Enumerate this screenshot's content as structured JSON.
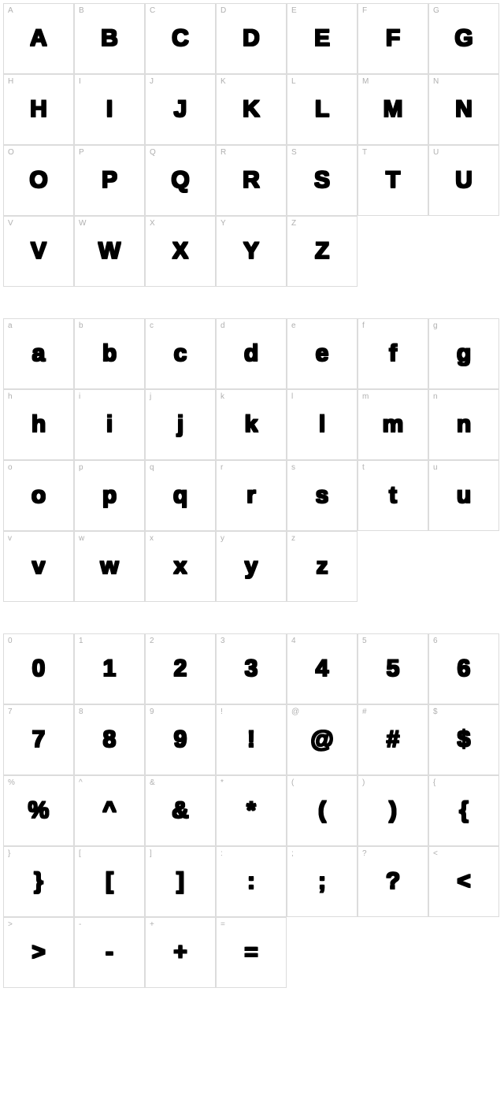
{
  "style": {
    "background_color": "#ffffff",
    "border_color": "#dcdcdc",
    "label_color": "#b0b0b0",
    "glyph_color": "#000000",
    "label_fontsize": 10,
    "glyph_fontsize": 30,
    "cell_size": 90,
    "columns": 7,
    "section_gap": 40
  },
  "sections": [
    {
      "name": "uppercase",
      "cells": [
        {
          "label": "A",
          "glyph": "A"
        },
        {
          "label": "B",
          "glyph": "B"
        },
        {
          "label": "C",
          "glyph": "C"
        },
        {
          "label": "D",
          "glyph": "D"
        },
        {
          "label": "E",
          "glyph": "E"
        },
        {
          "label": "F",
          "glyph": "F"
        },
        {
          "label": "G",
          "glyph": "G"
        },
        {
          "label": "H",
          "glyph": "H"
        },
        {
          "label": "I",
          "glyph": "I"
        },
        {
          "label": "J",
          "glyph": "J"
        },
        {
          "label": "K",
          "glyph": "K"
        },
        {
          "label": "L",
          "glyph": "L"
        },
        {
          "label": "M",
          "glyph": "M"
        },
        {
          "label": "N",
          "glyph": "N"
        },
        {
          "label": "O",
          "glyph": "O"
        },
        {
          "label": "P",
          "glyph": "P"
        },
        {
          "label": "Q",
          "glyph": "Q"
        },
        {
          "label": "R",
          "glyph": "R"
        },
        {
          "label": "S",
          "glyph": "S"
        },
        {
          "label": "T",
          "glyph": "T"
        },
        {
          "label": "U",
          "glyph": "U"
        },
        {
          "label": "V",
          "glyph": "V"
        },
        {
          "label": "W",
          "glyph": "W"
        },
        {
          "label": "X",
          "glyph": "X"
        },
        {
          "label": "Y",
          "glyph": "Y"
        },
        {
          "label": "Z",
          "glyph": "Z"
        }
      ]
    },
    {
      "name": "lowercase",
      "cells": [
        {
          "label": "a",
          "glyph": "a"
        },
        {
          "label": "b",
          "glyph": "b"
        },
        {
          "label": "c",
          "glyph": "c"
        },
        {
          "label": "d",
          "glyph": "d"
        },
        {
          "label": "e",
          "glyph": "e"
        },
        {
          "label": "f",
          "glyph": "f"
        },
        {
          "label": "g",
          "glyph": "g"
        },
        {
          "label": "h",
          "glyph": "h"
        },
        {
          "label": "i",
          "glyph": "i"
        },
        {
          "label": "j",
          "glyph": "j"
        },
        {
          "label": "k",
          "glyph": "k"
        },
        {
          "label": "l",
          "glyph": "l"
        },
        {
          "label": "m",
          "glyph": "m"
        },
        {
          "label": "n",
          "glyph": "n"
        },
        {
          "label": "o",
          "glyph": "o"
        },
        {
          "label": "p",
          "glyph": "p"
        },
        {
          "label": "q",
          "glyph": "q"
        },
        {
          "label": "r",
          "glyph": "r"
        },
        {
          "label": "s",
          "glyph": "s"
        },
        {
          "label": "t",
          "glyph": "t"
        },
        {
          "label": "u",
          "glyph": "u"
        },
        {
          "label": "v",
          "glyph": "v"
        },
        {
          "label": "w",
          "glyph": "w"
        },
        {
          "label": "x",
          "glyph": "x"
        },
        {
          "label": "y",
          "glyph": "y"
        },
        {
          "label": "z",
          "glyph": "z"
        }
      ]
    },
    {
      "name": "symbols",
      "cells": [
        {
          "label": "0",
          "glyph": "0"
        },
        {
          "label": "1",
          "glyph": "1"
        },
        {
          "label": "2",
          "glyph": "2"
        },
        {
          "label": "3",
          "glyph": "3"
        },
        {
          "label": "4",
          "glyph": "4"
        },
        {
          "label": "5",
          "glyph": "5"
        },
        {
          "label": "6",
          "glyph": "6"
        },
        {
          "label": "7",
          "glyph": "7"
        },
        {
          "label": "8",
          "glyph": "8"
        },
        {
          "label": "9",
          "glyph": "9"
        },
        {
          "label": "!",
          "glyph": "!"
        },
        {
          "label": "@",
          "glyph": "@"
        },
        {
          "label": "#",
          "glyph": "#"
        },
        {
          "label": "$",
          "glyph": "$"
        },
        {
          "label": "%",
          "glyph": "%"
        },
        {
          "label": "^",
          "glyph": "^"
        },
        {
          "label": "&",
          "glyph": "&"
        },
        {
          "label": "*",
          "glyph": "*"
        },
        {
          "label": "(",
          "glyph": "("
        },
        {
          "label": ")",
          "glyph": ")"
        },
        {
          "label": "{",
          "glyph": "{"
        },
        {
          "label": "}",
          "glyph": "}"
        },
        {
          "label": "[",
          "glyph": "["
        },
        {
          "label": "]",
          "glyph": "]"
        },
        {
          "label": ":",
          "glyph": ":"
        },
        {
          "label": ";",
          "glyph": ";"
        },
        {
          "label": "?",
          "glyph": "?"
        },
        {
          "label": "<",
          "glyph": "<"
        },
        {
          "label": ">",
          "glyph": ">"
        },
        {
          "label": "-",
          "glyph": "-"
        },
        {
          "label": "+",
          "glyph": "+"
        },
        {
          "label": "=",
          "glyph": "="
        }
      ]
    }
  ]
}
